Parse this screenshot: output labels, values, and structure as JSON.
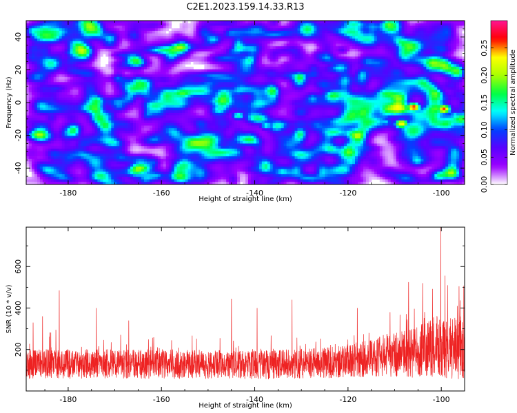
{
  "title": "C2E1.2023.159.14.33.R13",
  "chart_data": [
    {
      "type": "heatmap",
      "title": "C2E1.2023.159.14.33.R13",
      "xlabel": "Height of straight line (km)",
      "ylabel": "Frequency (Hz)",
      "xlim": [
        -189,
        -95
      ],
      "ylim": [
        -50,
        50
      ],
      "x_ticks": [
        -180,
        -160,
        -140,
        -120,
        -100
      ],
      "y_ticks": [
        -40,
        -20,
        0,
        20,
        40
      ],
      "colorbar": {
        "label": "Normalized spectral amplitude",
        "range": [
          0,
          0.3
        ],
        "ticks": [
          0.0,
          0.05,
          0.1,
          0.15,
          0.2,
          0.25
        ],
        "tick_labels": [
          "0.00",
          "0.05",
          "0.10",
          "0.15",
          "0.20",
          "0.25"
        ],
        "colormap": [
          "#ffffff",
          "#9b00ff",
          "#5a00ff",
          "#0040ff",
          "#00ffff",
          "#00ff40",
          "#aaff00",
          "#ffff00",
          "#ff0000",
          "#ff1493"
        ]
      },
      "description_hotspots": [
        {
          "x": -143.5,
          "y": -8,
          "value": 0.15
        },
        {
          "x": -137.5,
          "y": -14,
          "value": 0.14
        },
        {
          "x": -112,
          "y": -12,
          "value": 0.13
        },
        {
          "x": -110,
          "y": -6,
          "value": 0.16
        },
        {
          "x": -108.5,
          "y": -13,
          "value": 0.24
        },
        {
          "x": -106,
          "y": -3,
          "value": 0.27
        },
        {
          "x": -104,
          "y": -10,
          "value": 0.13
        },
        {
          "x": -101,
          "y": -3,
          "value": 0.18
        },
        {
          "x": -99.5,
          "y": -4,
          "value": 0.26
        },
        {
          "x": -97,
          "y": -8,
          "value": 0.14
        }
      ]
    },
    {
      "type": "line",
      "xlabel": "Height of straight line (km)",
      "ylabel": "SNR (10 * v/v)",
      "xlim": [
        -189,
        -95
      ],
      "ylim": [
        0,
        790
      ],
      "x_ticks": [
        -180,
        -160,
        -140,
        -120,
        -100
      ],
      "y_ticks": [
        200,
        400,
        600
      ],
      "color": "#ee2222",
      "baseline_profile": [
        {
          "x": -189,
          "value": 130
        },
        {
          "x": -160,
          "value": 130
        },
        {
          "x": -140,
          "value": 125
        },
        {
          "x": -125,
          "value": 135
        },
        {
          "x": -115,
          "value": 160
        },
        {
          "x": -105,
          "value": 190
        },
        {
          "x": -100,
          "value": 220
        },
        {
          "x": -95,
          "value": 205
        }
      ],
      "peaks": [
        {
          "x": -187.5,
          "value": 330
        },
        {
          "x": -185.5,
          "value": 360
        },
        {
          "x": -181.9,
          "value": 485
        },
        {
          "x": -174,
          "value": 400
        },
        {
          "x": -167,
          "value": 340
        },
        {
          "x": -145,
          "value": 445
        },
        {
          "x": -139.5,
          "value": 400
        },
        {
          "x": -132,
          "value": 440
        },
        {
          "x": -118,
          "value": 400
        },
        {
          "x": -111,
          "value": 380
        },
        {
          "x": -107,
          "value": 525
        },
        {
          "x": -104,
          "value": 520
        },
        {
          "x": -100.1,
          "value": 790
        },
        {
          "x": -98.6,
          "value": 510
        },
        {
          "x": -96.2,
          "value": 505
        }
      ]
    }
  ]
}
